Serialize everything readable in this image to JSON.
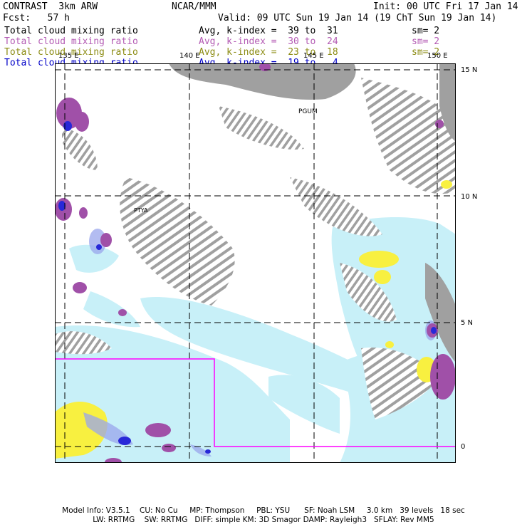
{
  "header": {
    "model": "CONTRAST  3km ARW",
    "center": "NCAR/MMM",
    "init": "Init: 00 UTC Fri 17 Jan 14",
    "fcst": "Fcst:   57 h",
    "valid": "Valid: 09 UTC Sun 19 Jan 14 (19 ChT Sun 19 Jan 14)"
  },
  "legend_rows": [
    {
      "field": "Total cloud mixing ratio",
      "range": "Avg, k-index =  39 to  31",
      "smooth": "sm= 2",
      "color": "#000000"
    },
    {
      "field": "Total cloud mixing ratio",
      "range": "Avg, k-index =  30 to  24",
      "smooth": "sm= 2",
      "color": "#b45cb4"
    },
    {
      "field": "Total cloud mixing ratio",
      "range": "Avg, k-index =  23 to  18",
      "smooth": "sm= 2",
      "color": "#8c8c14"
    },
    {
      "field": "Total cloud mixing ratio",
      "range": "Avg, k-index =  19 to   4",
      "smooth": "",
      "color": "#0000c8"
    }
  ],
  "map": {
    "lon_labels": [
      "135 E",
      "140 E",
      "145 E",
      "150 E"
    ],
    "lat_labels": [
      "15 N",
      "10 N",
      "5 N",
      "0"
    ],
    "places": [
      "PGUM",
      "PTYA"
    ],
    "colors": {
      "gray": "#a0a0a0",
      "lightblue": "#c8f0f8",
      "yellow": "#f8f040",
      "purple": "#a050a8",
      "blue": "#2828d8",
      "box": "#ff00ff"
    }
  },
  "footer": {
    "line1": "Model Info: V3.5.1    CU: No Cu     MP: Thompson     PBL: YSU      SF: Noah LSM     3.0 km   39 levels   18 sec",
    "line2": "LW: RRTMG    SW: RRTMG   DIFF: simple KM: 3D Smagor DAMP: Rayleigh3   SFLAY: Rev MM5"
  }
}
